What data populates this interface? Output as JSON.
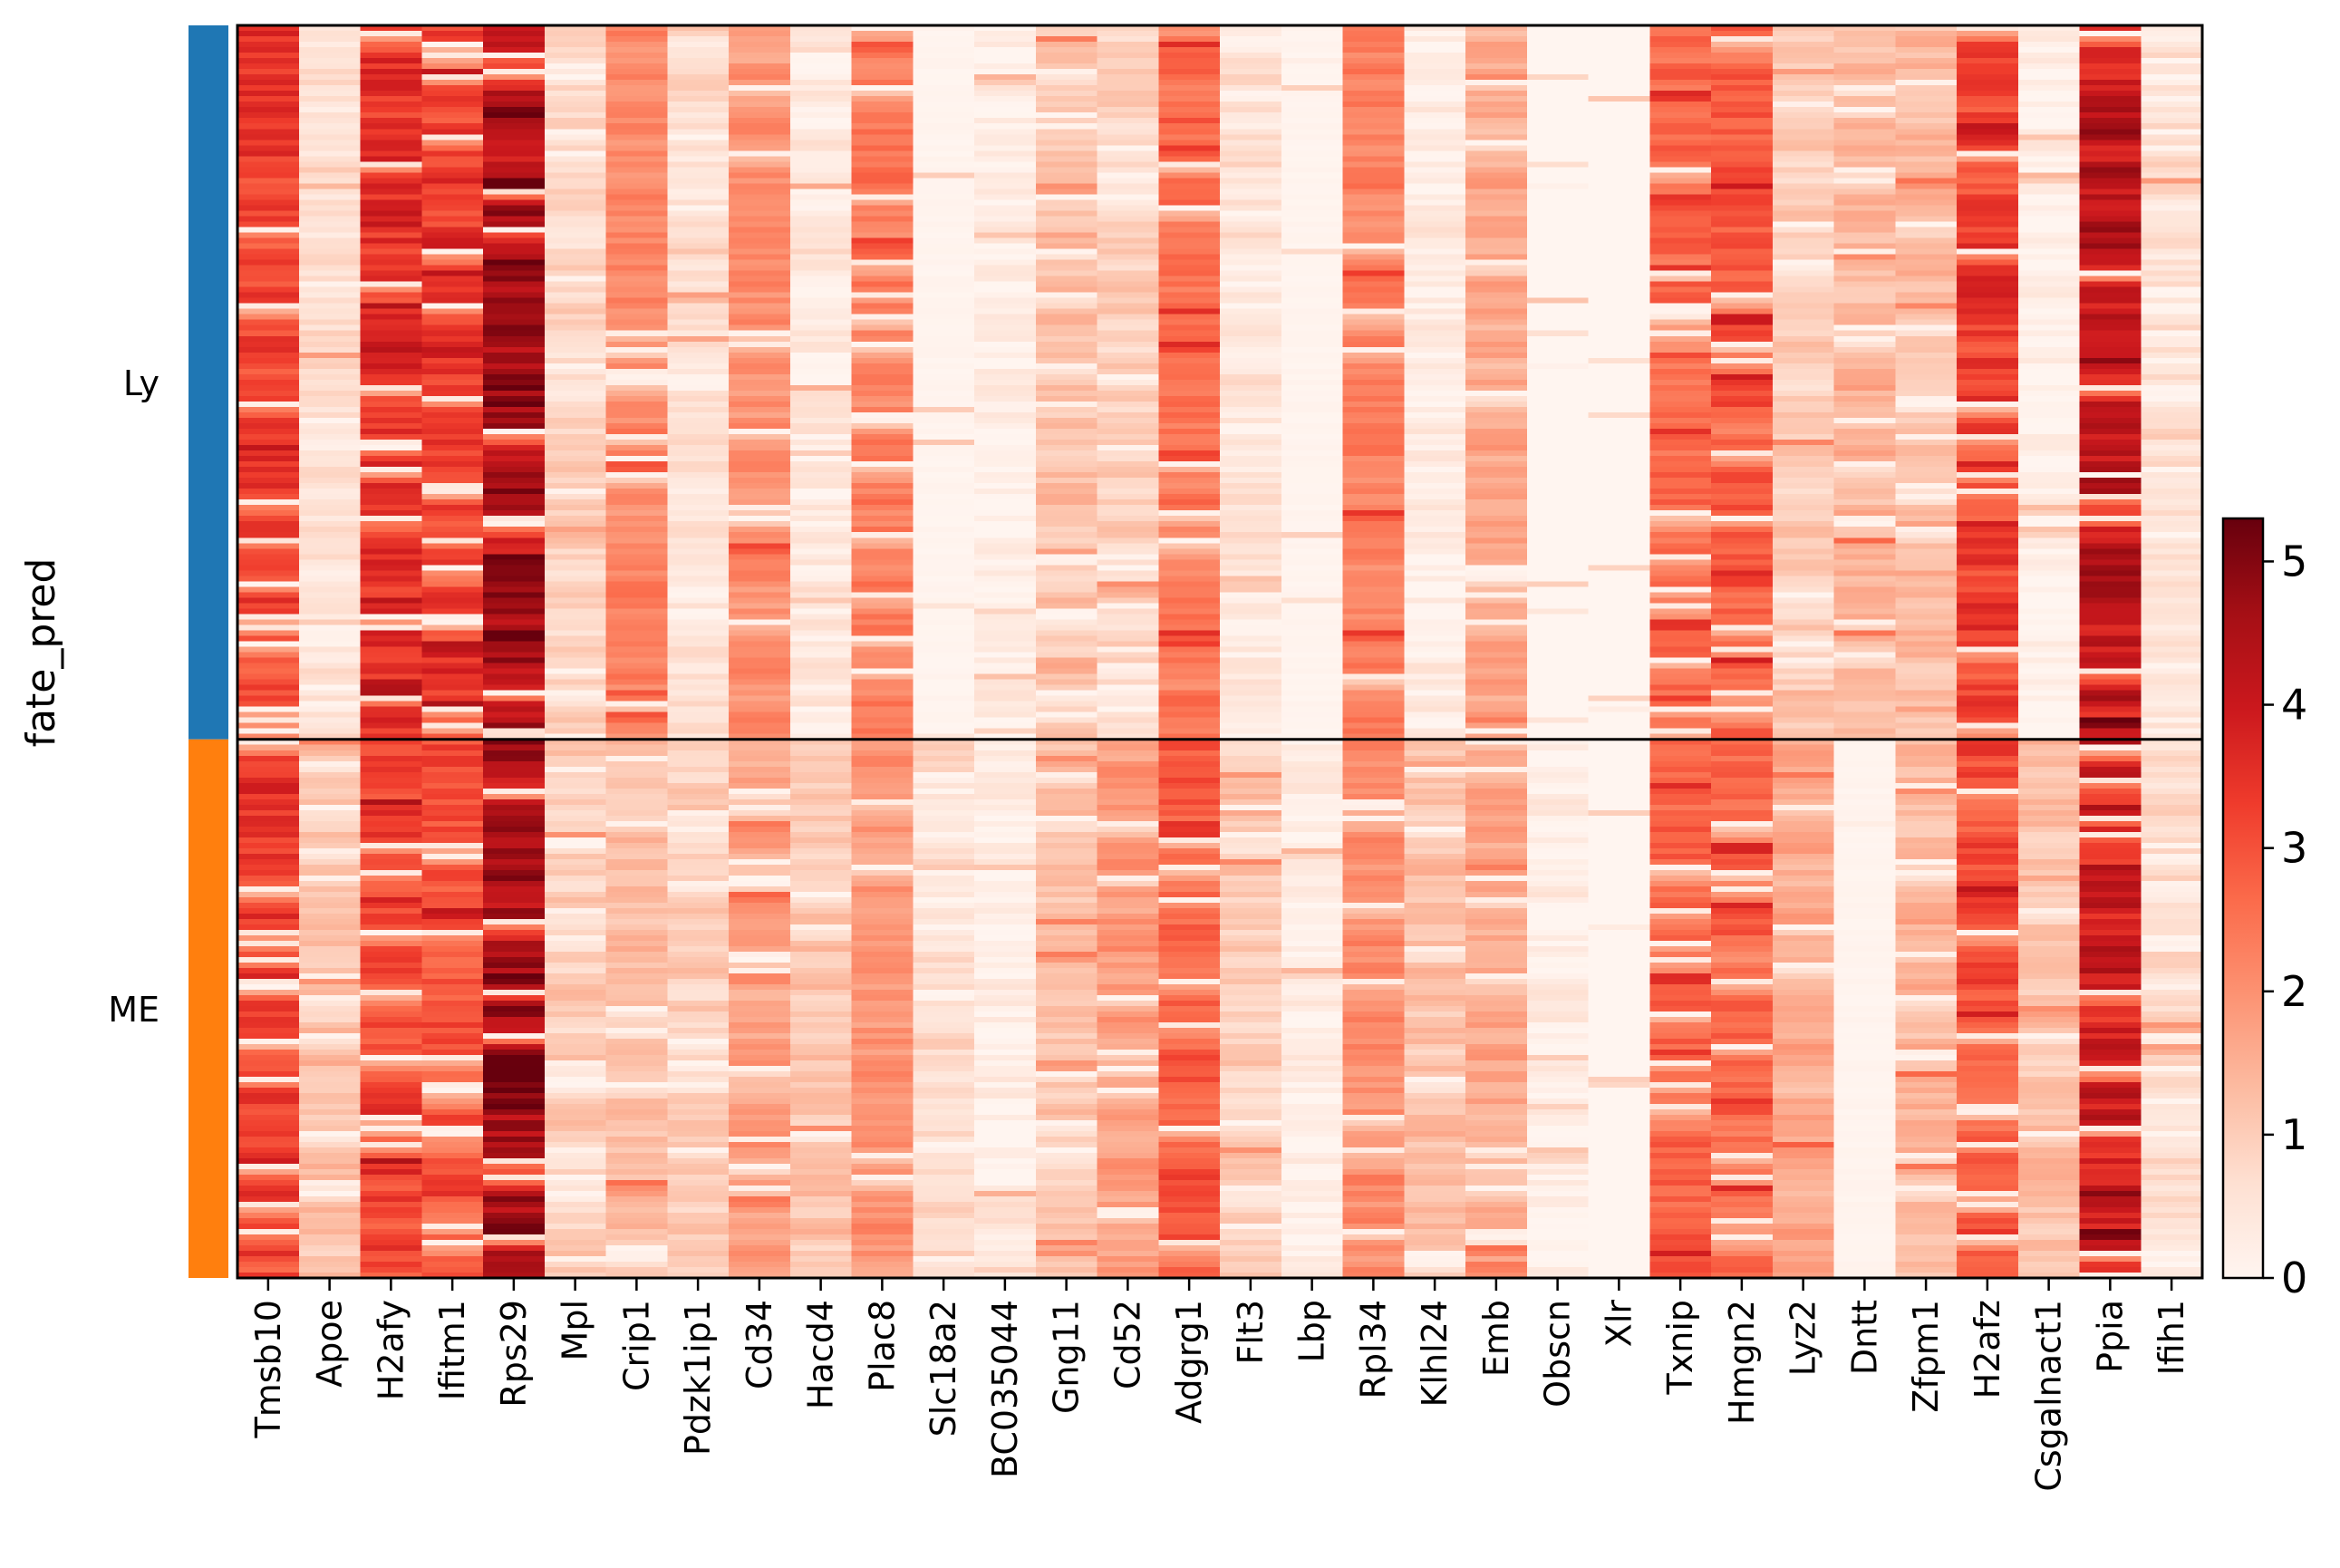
{
  "chart_data": {
    "type": "heatmap",
    "ylabel": "fate_pred",
    "groups": [
      {
        "name": "Ly",
        "color": "#1f77b4",
        "fraction": 0.57
      },
      {
        "name": "ME",
        "color": "#ff7f0e",
        "fraction": 0.43
      }
    ],
    "genes": [
      "Tmsb10",
      "Apoe",
      "H2afy",
      "Ifitm1",
      "Rps29",
      "Mpl",
      "Crip1",
      "Pdzk1ip1",
      "Cd34",
      "Hacd4",
      "Plac8",
      "Slc18a2",
      "BC035044",
      "Gng11",
      "Cd52",
      "Adgrg1",
      "Flt3",
      "Lbp",
      "Rpl34",
      "Klhl24",
      "Emb",
      "Obscn",
      "Xlr",
      "Txnip",
      "Hmgn2",
      "Lyz2",
      "Dntt",
      "Zfpm1",
      "H2afz",
      "Csgalnact1",
      "Ppia",
      "Ifih1"
    ],
    "mean_expression": {
      "Ly": [
        3.3,
        0.6,
        3.6,
        3.3,
        4.6,
        0.8,
        2.2,
        0.6,
        2.0,
        0.4,
        2.4,
        0.1,
        0.2,
        1.2,
        0.9,
        2.4,
        0.6,
        0.1,
        2.2,
        0.3,
        1.6,
        0.0,
        0.0,
        2.6,
        2.8,
        1.0,
        1.4,
        1.3,
        3.3,
        0.2,
        4.1,
        0.6
      ],
      "ME": [
        3.4,
        1.2,
        3.2,
        3.0,
        4.5,
        1.0,
        1.3,
        1.0,
        1.7,
        1.1,
        2.0,
        0.7,
        0.3,
        1.1,
        1.9,
        2.9,
        0.9,
        0.2,
        2.1,
        1.2,
        1.6,
        0.2,
        0.0,
        2.7,
        2.6,
        1.6,
        0.1,
        1.4,
        3.0,
        1.2,
        4.0,
        0.8
      ]
    },
    "colorbar": {
      "min": 0,
      "max": 5.3,
      "ticks": [
        0,
        1,
        2,
        3,
        4,
        5
      ],
      "colormap": "Reds"
    }
  }
}
